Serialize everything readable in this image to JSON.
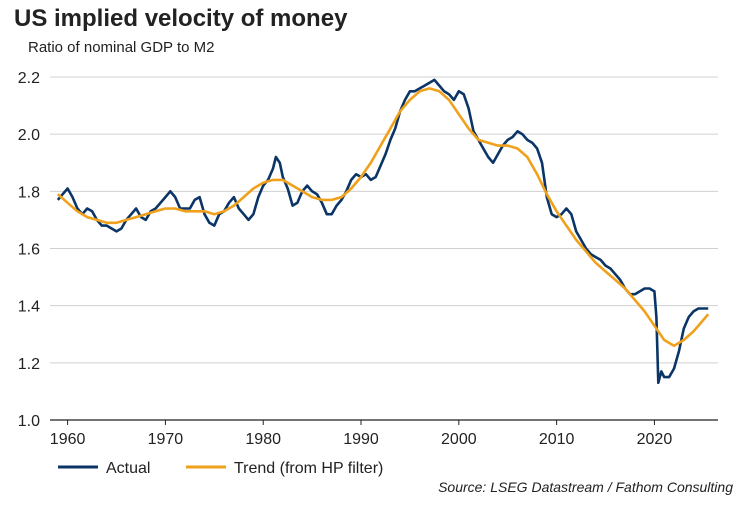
{
  "chart_data": {
    "type": "line",
    "title": "US implied velocity of money",
    "subtitle": "Ratio of nominal GDP to M2",
    "source": "Source: LSEG Datastream / Fathom Consulting",
    "xlim": [
      1958.2,
      2026.5
    ],
    "xticks": [
      1960,
      1970,
      1980,
      1990,
      2000,
      2010,
      2020
    ],
    "ylim": [
      1.0,
      2.2
    ],
    "yticks": [
      {
        "value": 1.0,
        "label": "1.0"
      },
      1.2,
      1.4,
      1.6,
      1.8,
      {
        "value": 2.0,
        "label": "2.0"
      },
      2.2
    ],
    "grid": true,
    "legend": "bottom",
    "series": [
      {
        "name": "Actual",
        "color": "#0b3566",
        "x": [
          1959,
          1959.5,
          1960,
          1960.5,
          1961,
          1961.5,
          1962,
          1962.5,
          1963,
          1963.5,
          1964,
          1964.5,
          1965,
          1965.5,
          1966,
          1966.5,
          1967,
          1967.5,
          1968,
          1968.5,
          1969,
          1969.5,
          1970,
          1970.5,
          1971,
          1971.5,
          1972,
          1972.5,
          1973,
          1973.5,
          1974,
          1974.5,
          1975,
          1975.5,
          1976,
          1976.5,
          1977,
          1977.5,
          1978,
          1978.5,
          1979,
          1979.5,
          1980,
          1980.5,
          1981,
          1981.3,
          1981.7,
          1982,
          1982.5,
          1983,
          1983.5,
          1984,
          1984.5,
          1985,
          1985.5,
          1986,
          1986.5,
          1987,
          1987.5,
          1988,
          1988.5,
          1989,
          1989.5,
          1990,
          1990.5,
          1991,
          1991.5,
          1992,
          1992.5,
          1993,
          1993.5,
          1994,
          1994.5,
          1995,
          1995.5,
          1996,
          1996.5,
          1997,
          1997.5,
          1998,
          1998.5,
          1999,
          1999.5,
          2000,
          2000.5,
          2001,
          2001.5,
          2002,
          2002.5,
          2003,
          2003.5,
          2004,
          2004.5,
          2005,
          2005.5,
          2006,
          2006.5,
          2007,
          2007.5,
          2008,
          2008.5,
          2009,
          2009.5,
          2010,
          2010.5,
          2011,
          2011.5,
          2012,
          2012.5,
          2013,
          2013.5,
          2014,
          2014.5,
          2015,
          2015.5,
          2016,
          2016.5,
          2017,
          2017.5,
          2018,
          2018.5,
          2019,
          2019.5,
          2020,
          2020.2,
          2020.4,
          2020.7,
          2021,
          2021.5,
          2022,
          2022.5,
          2023,
          2023.5,
          2024,
          2024.5,
          2025,
          2025.5
        ],
        "values": [
          1.77,
          1.79,
          1.81,
          1.78,
          1.74,
          1.72,
          1.74,
          1.73,
          1.7,
          1.68,
          1.68,
          1.67,
          1.66,
          1.67,
          1.7,
          1.72,
          1.74,
          1.71,
          1.7,
          1.73,
          1.74,
          1.76,
          1.78,
          1.8,
          1.78,
          1.74,
          1.74,
          1.74,
          1.77,
          1.78,
          1.72,
          1.69,
          1.68,
          1.72,
          1.73,
          1.76,
          1.78,
          1.74,
          1.72,
          1.7,
          1.72,
          1.78,
          1.82,
          1.84,
          1.88,
          1.92,
          1.9,
          1.85,
          1.81,
          1.75,
          1.76,
          1.8,
          1.82,
          1.8,
          1.79,
          1.76,
          1.72,
          1.72,
          1.75,
          1.77,
          1.8,
          1.84,
          1.86,
          1.85,
          1.86,
          1.84,
          1.85,
          1.89,
          1.93,
          1.98,
          2.02,
          2.08,
          2.12,
          2.15,
          2.15,
          2.16,
          2.17,
          2.18,
          2.19,
          2.17,
          2.15,
          2.14,
          2.12,
          2.15,
          2.14,
          2.09,
          2.01,
          1.98,
          1.95,
          1.92,
          1.9,
          1.93,
          1.96,
          1.98,
          1.99,
          2.01,
          2.0,
          1.98,
          1.97,
          1.95,
          1.9,
          1.78,
          1.72,
          1.71,
          1.72,
          1.74,
          1.72,
          1.66,
          1.63,
          1.6,
          1.58,
          1.57,
          1.56,
          1.54,
          1.53,
          1.51,
          1.49,
          1.46,
          1.44,
          1.44,
          1.45,
          1.46,
          1.46,
          1.45,
          1.36,
          1.13,
          1.17,
          1.15,
          1.15,
          1.18,
          1.24,
          1.32,
          1.36,
          1.38,
          1.39,
          1.39,
          1.39
        ]
      },
      {
        "name": "Trend (from HP filter)",
        "color": "#f0a11c",
        "x": [
          1959,
          1960,
          1961,
          1962,
          1963,
          1964,
          1965,
          1966,
          1967,
          1968,
          1969,
          1970,
          1971,
          1972,
          1973,
          1974,
          1975,
          1976,
          1977,
          1978,
          1979,
          1980,
          1981,
          1982,
          1983,
          1984,
          1985,
          1986,
          1987,
          1988,
          1989,
          1990,
          1991,
          1992,
          1993,
          1994,
          1995,
          1996,
          1997,
          1998,
          1999,
          2000,
          2001,
          2002,
          2003,
          2004,
          2005,
          2006,
          2007,
          2008,
          2009,
          2010,
          2011,
          2012,
          2013,
          2014,
          2015,
          2016,
          2017,
          2018,
          2019,
          2020,
          2021,
          2022,
          2023,
          2024,
          2025,
          2025.5
        ],
        "values": [
          1.79,
          1.76,
          1.73,
          1.71,
          1.7,
          1.69,
          1.69,
          1.7,
          1.71,
          1.72,
          1.73,
          1.74,
          1.74,
          1.73,
          1.73,
          1.73,
          1.72,
          1.73,
          1.75,
          1.78,
          1.81,
          1.83,
          1.84,
          1.84,
          1.82,
          1.8,
          1.78,
          1.77,
          1.77,
          1.78,
          1.81,
          1.85,
          1.9,
          1.96,
          2.02,
          2.08,
          2.12,
          2.15,
          2.16,
          2.15,
          2.12,
          2.07,
          2.02,
          1.98,
          1.97,
          1.96,
          1.96,
          1.95,
          1.92,
          1.86,
          1.79,
          1.73,
          1.68,
          1.63,
          1.59,
          1.55,
          1.52,
          1.49,
          1.46,
          1.42,
          1.38,
          1.33,
          1.28,
          1.26,
          1.28,
          1.31,
          1.35,
          1.37
        ]
      }
    ]
  }
}
